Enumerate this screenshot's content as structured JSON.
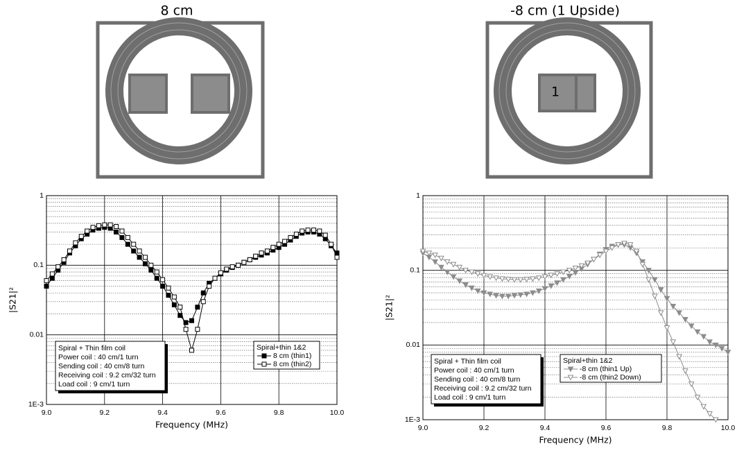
{
  "diagrams": [
    {
      "title": "8 cm"
    },
    {
      "title": "-8 cm (1 Upside)",
      "label": "1"
    }
  ],
  "chart_data": [
    {
      "type": "line",
      "x_label": "Frequency (MHz)",
      "y_label": "|S21|²",
      "log_y": true,
      "grid": true,
      "x": [
        9.0,
        9.02,
        9.04,
        9.06,
        9.08,
        9.1,
        9.12,
        9.14,
        9.16,
        9.18,
        9.2,
        9.22,
        9.24,
        9.26,
        9.28,
        9.3,
        9.32,
        9.34,
        9.36,
        9.38,
        9.4,
        9.42,
        9.44,
        9.46,
        9.48,
        9.5,
        9.52,
        9.54,
        9.56,
        9.58,
        9.6,
        9.62,
        9.64,
        9.66,
        9.68,
        9.7,
        9.72,
        9.74,
        9.76,
        9.78,
        9.8,
        9.82,
        9.84,
        9.86,
        9.88,
        9.9,
        9.92,
        9.94,
        9.96,
        9.98,
        10.0
      ],
      "xlim": [
        9,
        10
      ],
      "xticks": [
        {
          "value": 9,
          "label": "9.0"
        },
        9.2,
        9.4,
        9.6,
        9.8,
        {
          "value": 10,
          "label": "10.0"
        }
      ],
      "ylim": [
        0.001,
        1
      ],
      "yticks": [
        {
          "value": 0.001,
          "label": "1E-3"
        },
        0.01,
        0.1,
        1
      ],
      "legend_title": "Spiral+thin 1&2",
      "annotation": [
        "Spiral + Thin film coil",
        "Power coil : 40 cm/1 turn",
        "Sending coil : 40 cm/8 turn",
        "Receiving coil : 9.2 cm/32 turn",
        "Load coil : 9 cm/1 turn"
      ],
      "series": [
        {
          "name": "8 cm (thin1)",
          "color": "#000000",
          "marker": "filled-square",
          "values": [
            0.05,
            0.065,
            0.085,
            0.11,
            0.15,
            0.19,
            0.24,
            0.28,
            0.32,
            0.34,
            0.35,
            0.34,
            0.3,
            0.25,
            0.2,
            0.16,
            0.13,
            0.105,
            0.085,
            0.065,
            0.05,
            0.037,
            0.027,
            0.019,
            0.015,
            0.016,
            0.025,
            0.04,
            0.055,
            0.065,
            0.075,
            0.085,
            0.093,
            0.1,
            0.11,
            0.12,
            0.13,
            0.14,
            0.15,
            0.165,
            0.18,
            0.2,
            0.23,
            0.26,
            0.29,
            0.3,
            0.3,
            0.28,
            0.24,
            0.19,
            0.15
          ]
        },
        {
          "name": "8 cm (thin2)",
          "color": "#000000",
          "marker": "open-square",
          "values": [
            0.06,
            0.075,
            0.095,
            0.12,
            0.16,
            0.21,
            0.26,
            0.31,
            0.35,
            0.37,
            0.38,
            0.38,
            0.36,
            0.31,
            0.25,
            0.2,
            0.16,
            0.13,
            0.1,
            0.08,
            0.062,
            0.047,
            0.035,
            0.025,
            0.012,
            0.006,
            0.012,
            0.03,
            0.05,
            0.065,
            0.078,
            0.088,
            0.095,
            0.1,
            0.11,
            0.12,
            0.135,
            0.15,
            0.16,
            0.18,
            0.2,
            0.22,
            0.25,
            0.28,
            0.31,
            0.32,
            0.32,
            0.31,
            0.27,
            0.2,
            0.13
          ]
        }
      ]
    },
    {
      "type": "line",
      "x_label": "Frequency (MHz)",
      "y_label": "|S21|²",
      "log_y": true,
      "grid": true,
      "x": [
        9.0,
        9.02,
        9.04,
        9.06,
        9.08,
        9.1,
        9.12,
        9.14,
        9.16,
        9.18,
        9.2,
        9.22,
        9.24,
        9.26,
        9.28,
        9.3,
        9.32,
        9.34,
        9.36,
        9.38,
        9.4,
        9.42,
        9.44,
        9.46,
        9.48,
        9.5,
        9.52,
        9.54,
        9.56,
        9.58,
        9.6,
        9.62,
        9.64,
        9.66,
        9.68,
        9.7,
        9.72,
        9.74,
        9.76,
        9.78,
        9.8,
        9.82,
        9.84,
        9.86,
        9.88,
        9.9,
        9.92,
        9.94,
        9.96,
        9.98,
        10.0
      ],
      "xlim": [
        9,
        10
      ],
      "xticks": [
        {
          "value": 9,
          "label": "9.0"
        },
        9.2,
        9.4,
        9.6,
        9.8,
        {
          "value": 10,
          "label": "10.0"
        }
      ],
      "ylim": [
        0.001,
        1
      ],
      "yticks": [
        {
          "value": 0.001,
          "label": "1E-3"
        },
        0.01,
        0.1,
        1
      ],
      "legend_title": "Spiral+thin 1&2",
      "annotation": [
        "Spiral + Thin film coil",
        "Power coil : 40 cm/1 turn",
        "Sending coil : 40 cm/8 turn",
        "Receiving coil : 9.2 cm/32 turn",
        "Load coil : 9 cm/1 turn"
      ],
      "series": [
        {
          "name": "-8 cm (thin1 Up)",
          "color": "#8c8c8c",
          "marker": "filled-triangle-down",
          "values": [
            0.17,
            0.15,
            0.13,
            0.11,
            0.095,
            0.082,
            0.072,
            0.064,
            0.058,
            0.053,
            0.05,
            0.048,
            0.046,
            0.045,
            0.045,
            0.046,
            0.047,
            0.048,
            0.05,
            0.053,
            0.057,
            0.062,
            0.068,
            0.075,
            0.083,
            0.093,
            0.105,
            0.12,
            0.14,
            0.165,
            0.19,
            0.21,
            0.22,
            0.22,
            0.2,
            0.17,
            0.13,
            0.1,
            0.075,
            0.055,
            0.042,
            0.033,
            0.027,
            0.022,
            0.018,
            0.015,
            0.013,
            0.011,
            0.01,
            0.009,
            0.008
          ]
        },
        {
          "name": "-8 cm (thin2 Down)",
          "color": "#8c8c8c",
          "marker": "open-triangle-down",
          "values": [
            0.18,
            0.17,
            0.16,
            0.145,
            0.13,
            0.12,
            0.11,
            0.1,
            0.095,
            0.09,
            0.085,
            0.082,
            0.079,
            0.077,
            0.076,
            0.075,
            0.075,
            0.076,
            0.077,
            0.079,
            0.082,
            0.086,
            0.09,
            0.095,
            0.1,
            0.107,
            0.115,
            0.125,
            0.14,
            0.16,
            0.18,
            0.2,
            0.22,
            0.23,
            0.22,
            0.18,
            0.12,
            0.075,
            0.045,
            0.027,
            0.017,
            0.011,
            0.007,
            0.0045,
            0.003,
            0.002,
            0.0015,
            0.0012,
            0.001,
            null,
            null
          ]
        }
      ]
    }
  ]
}
